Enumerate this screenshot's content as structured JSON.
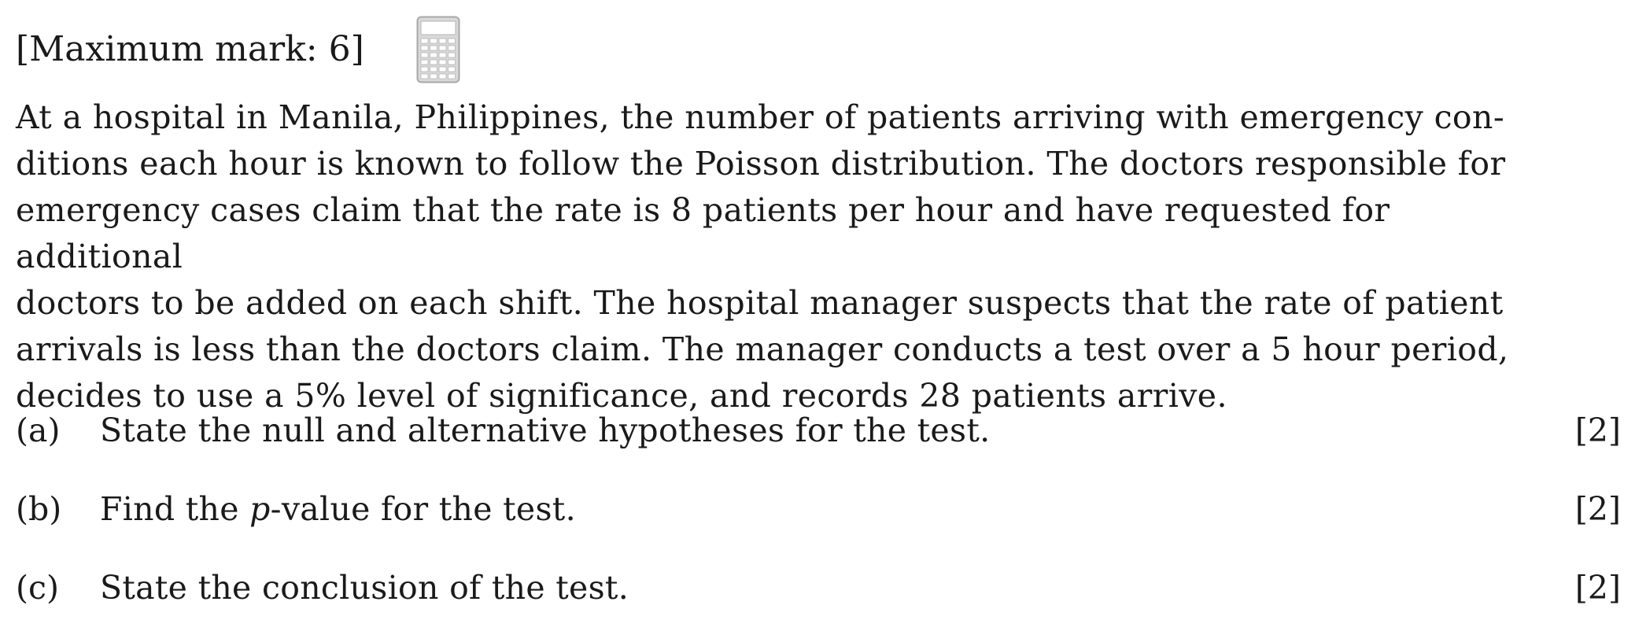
{
  "header": {
    "max_mark_text": "[Maximum mark: 6]",
    "icon": "calculator-icon"
  },
  "question": {
    "stem": "At a hospital in Manila, Philippines, the number of patients arriving with emergency conditions each hour is known to follow the Poisson distribution. The doctors responsible for emergency cases claim that the rate is 8 patients per hour and have requested for additional doctors to be added on each shift. The hospital manager suspects that the rate of patient arrivals is less than the doctors claim. The manager conducts a test over a 5 hour period, decides to use a 5% level of significance, and records 28 patients arrive.",
    "stem_lines": [
      "At a hospital in Manila, Philippines, the number of patients arriving with emergency con-",
      "ditions each hour is known to follow the Poisson distribution.  The doctors responsible for",
      "emergency cases claim that the rate is 8 patients per hour and have requested for additional",
      "doctors to be added on each shift.  The hospital manager suspects that the rate of patient",
      "arrivals is less than the doctors claim.  The manager conducts a test over a 5 hour period,",
      "decides to use a 5% level of significance, and records 28 patients arrive."
    ],
    "parts": [
      {
        "label": "(a)",
        "text": "State the null and alternative hypotheses for the test.",
        "marks": "[2]"
      },
      {
        "label": "(b)",
        "text_before": "Find the ",
        "text_italic": "p",
        "text_after": "-value for the test.",
        "marks": "[2]"
      },
      {
        "label": "(c)",
        "text": "State the conclusion of the test.",
        "marks": "[2]"
      }
    ]
  }
}
